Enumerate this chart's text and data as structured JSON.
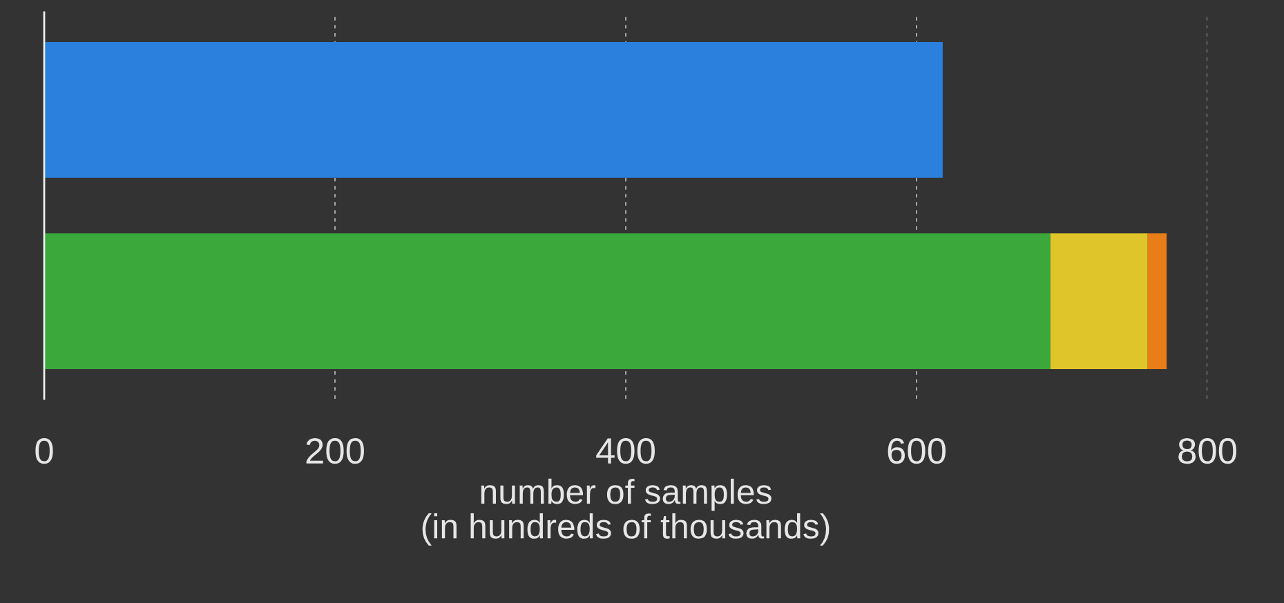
{
  "chart_data": {
    "type": "bar",
    "orientation": "horizontal",
    "stacked": true,
    "categories": [
      null,
      null
    ],
    "series": [
      {
        "color": "#2a80dc",
        "values": [
          618,
          null
        ]
      },
      {
        "color": "#3aa83a",
        "values": [
          null,
          692
        ]
      },
      {
        "color": "#e0c52a",
        "values": [
          null,
          67
        ]
      },
      {
        "color": "#e97d18",
        "values": [
          null,
          13
        ]
      }
    ],
    "xlabel": "number of samples\n(in hundreds of thousands)",
    "xlim": [
      0,
      800
    ],
    "xticks": [
      0,
      200,
      400,
      600,
      800
    ],
    "grid": "x",
    "tick_labels": "x",
    "legend": false
  }
}
